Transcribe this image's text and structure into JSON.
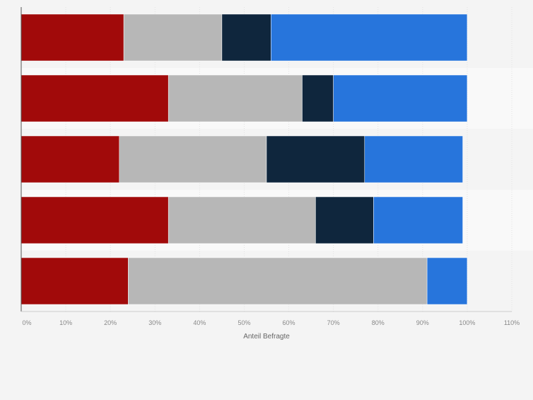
{
  "chart_data": {
    "type": "bar",
    "orientation": "horizontal",
    "stacked": true,
    "categories": [
      "",
      "",
      "",
      "",
      ""
    ],
    "series": [
      {
        "name": "",
        "color": "#a10a0a",
        "values": [
          23,
          33,
          22,
          33,
          24
        ]
      },
      {
        "name": "",
        "color": "#b7b7b7",
        "values": [
          22,
          30,
          33,
          33,
          67
        ]
      },
      {
        "name": "",
        "color": "#0f263d",
        "values": [
          11,
          7,
          22,
          13,
          0
        ]
      },
      {
        "name": "",
        "color": "#2775dc",
        "values": [
          44,
          30,
          22,
          20,
          9
        ]
      }
    ],
    "xlabel": "Anteil Befragte",
    "ylabel": "",
    "xlim": [
      0,
      110
    ],
    "xticks": [
      0,
      10,
      20,
      30,
      40,
      50,
      60,
      70,
      80,
      90,
      100,
      110
    ],
    "xtick_labels": [
      "0%",
      "10%",
      "20%",
      "30%",
      "40%",
      "50%",
      "60%",
      "70%",
      "80%",
      "90%",
      "100%",
      "110%"
    ],
    "grid": true,
    "colors": {
      "background": "#f4f4f4",
      "band_alt": "#f9f9f9",
      "grid": "#e3e3e3",
      "axis": "#555555",
      "tick_text": "#888888",
      "label_text": "#666666"
    }
  }
}
